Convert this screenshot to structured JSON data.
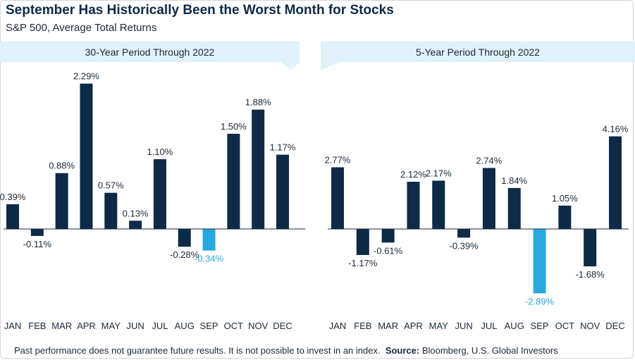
{
  "title": "September Has Historically Been the Worst Month for Stocks",
  "subtitle": "S&P 500, Average Total Returns",
  "footer": {
    "disclaimer": "Past performance does not guarantee future results. It is not possible to invest in an index.",
    "source_label": "Source:",
    "source_text": " Bloomberg, U.S. Global Investors"
  },
  "colors": {
    "bar": "#0d2a47",
    "highlight": "#29a8e0",
    "panel": "#dff1f9"
  },
  "chart_data": [
    {
      "type": "bar",
      "title": "30-Year Period Through 2022",
      "categories": [
        "JAN",
        "FEB",
        "MAR",
        "APR",
        "MAY",
        "JUN",
        "JUL",
        "AUG",
        "SEP",
        "OCT",
        "NOV",
        "DEC"
      ],
      "values": [
        0.39,
        -0.11,
        0.88,
        2.29,
        0.57,
        0.13,
        1.1,
        -0.28,
        -0.34,
        1.5,
        1.88,
        1.17
      ],
      "labels": [
        "0.39%",
        "-0.11%",
        "0.88%",
        "2.29%",
        "0.57%",
        "0.13%",
        "1.10%",
        "-0.28%",
        "-0.34%",
        "1.50%",
        "1.88%",
        "1.17%"
      ],
      "highlight": "SEP",
      "unit": "%"
    },
    {
      "type": "bar",
      "title": "5-Year Period Through 2022",
      "categories": [
        "JAN",
        "FEB",
        "MAR",
        "APR",
        "MAY",
        "JUN",
        "JUL",
        "AUG",
        "SEP",
        "OCT",
        "NOV",
        "DEC"
      ],
      "values": [
        2.77,
        -1.17,
        -0.61,
        2.12,
        2.17,
        -0.39,
        2.74,
        1.84,
        -2.89,
        1.05,
        -1.68,
        4.16
      ],
      "labels": [
        "2.77%",
        "-1.17%",
        "-0.61%",
        "2.12%",
        "2.17%",
        "-0.39%",
        "2.74%",
        "1.84%",
        "-2.89%",
        "1.05%",
        "-1.68%",
        "4.16%"
      ],
      "highlight": "SEP",
      "unit": "%"
    }
  ]
}
